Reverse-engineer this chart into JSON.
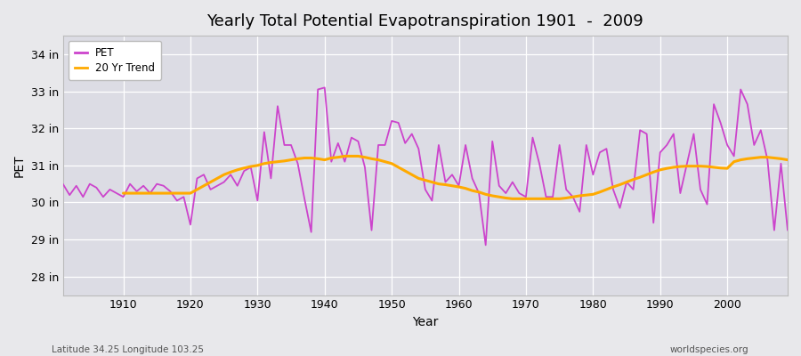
{
  "title": "Yearly Total Potential Evapotranspiration 1901  -  2009",
  "xlabel": "Year",
  "ylabel": "PET",
  "subtitle_left": "Latitude 34.25 Longitude 103.25",
  "subtitle_right": "worldspecies.org",
  "pet_color": "#cc44cc",
  "trend_color": "#ffaa00",
  "background_color": "#e8e8eb",
  "plot_bg_color": "#dcdce4",
  "ylim": [
    27.5,
    34.5
  ],
  "yticks": [
    28,
    29,
    30,
    31,
    32,
    33,
    34
  ],
  "ytick_labels": [
    "28 in",
    "29 in",
    "30 in",
    "31 in",
    "32 in",
    "33 in",
    "34 in"
  ],
  "years": [
    1901,
    1902,
    1903,
    1904,
    1905,
    1906,
    1907,
    1908,
    1909,
    1910,
    1911,
    1912,
    1913,
    1914,
    1915,
    1916,
    1917,
    1918,
    1919,
    1920,
    1921,
    1922,
    1923,
    1924,
    1925,
    1926,
    1927,
    1928,
    1929,
    1930,
    1931,
    1932,
    1933,
    1934,
    1935,
    1936,
    1937,
    1938,
    1939,
    1940,
    1941,
    1942,
    1943,
    1944,
    1945,
    1946,
    1947,
    1948,
    1949,
    1950,
    1951,
    1952,
    1953,
    1954,
    1955,
    1956,
    1957,
    1958,
    1959,
    1960,
    1961,
    1962,
    1963,
    1964,
    1965,
    1966,
    1967,
    1968,
    1969,
    1970,
    1971,
    1972,
    1973,
    1974,
    1975,
    1976,
    1977,
    1978,
    1979,
    1980,
    1981,
    1982,
    1983,
    1984,
    1985,
    1986,
    1987,
    1988,
    1989,
    1990,
    1991,
    1992,
    1993,
    1994,
    1995,
    1996,
    1997,
    1998,
    1999,
    2000,
    2001,
    2002,
    2003,
    2004,
    2005,
    2006,
    2007,
    2008,
    2009
  ],
  "pet_values": [
    30.5,
    30.2,
    30.45,
    30.15,
    30.5,
    30.4,
    30.15,
    30.35,
    30.25,
    30.15,
    30.5,
    30.3,
    30.45,
    30.25,
    30.5,
    30.45,
    30.3,
    30.05,
    30.15,
    29.4,
    30.65,
    30.75,
    30.35,
    30.45,
    30.55,
    30.75,
    30.45,
    30.85,
    30.95,
    30.05,
    31.9,
    30.65,
    32.6,
    31.55,
    31.55,
    31.05,
    30.1,
    29.2,
    33.05,
    33.1,
    31.1,
    31.6,
    31.1,
    31.75,
    31.65,
    30.95,
    29.25,
    31.55,
    31.55,
    32.2,
    32.15,
    31.6,
    31.85,
    31.45,
    30.35,
    30.05,
    31.55,
    30.55,
    30.75,
    30.45,
    31.55,
    30.65,
    30.25,
    28.85,
    31.65,
    30.45,
    30.25,
    30.55,
    30.25,
    30.15,
    31.75,
    31.05,
    30.15,
    30.15,
    31.55,
    30.35,
    30.15,
    29.75,
    31.55,
    30.75,
    31.35,
    31.45,
    30.35,
    29.85,
    30.55,
    30.35,
    31.95,
    31.85,
    29.45,
    31.35,
    31.55,
    31.85,
    30.25,
    31.05,
    31.85,
    30.35,
    29.95,
    32.65,
    32.15,
    31.55,
    31.25,
    33.05,
    32.65,
    31.55,
    31.95,
    31.15,
    29.25,
    31.05,
    29.25
  ],
  "trend_years": [
    1910,
    1911,
    1912,
    1913,
    1914,
    1915,
    1916,
    1917,
    1918,
    1919,
    1920,
    1921,
    1922,
    1923,
    1924,
    1925,
    1926,
    1927,
    1928,
    1929,
    1930,
    1931,
    1932,
    1933,
    1934,
    1935,
    1936,
    1937,
    1938,
    1939,
    1940,
    1941,
    1942,
    1943,
    1944,
    1945,
    1946,
    1947,
    1948,
    1949,
    1950,
    1951,
    1952,
    1953,
    1954,
    1955,
    1956,
    1957,
    1958,
    1959,
    1960,
    1961,
    1962,
    1963,
    1964,
    1965,
    1966,
    1967,
    1968,
    1969,
    1970,
    1971,
    1972,
    1973,
    1974,
    1975,
    1976,
    1977,
    1978,
    1979,
    1980,
    1981,
    1982,
    1983,
    1984,
    1985,
    1986,
    1987,
    1988,
    1989,
    1990,
    1991,
    1992,
    1993,
    1994,
    1995,
    1996,
    1997,
    1998,
    1999,
    2000,
    2001,
    2002,
    2003,
    2004,
    2005,
    2006,
    2007,
    2008,
    2009
  ],
  "trend_values": [
    30.25,
    30.25,
    30.25,
    30.25,
    30.25,
    30.25,
    30.25,
    30.25,
    30.25,
    30.25,
    30.25,
    30.35,
    30.45,
    30.55,
    30.65,
    30.75,
    30.82,
    30.88,
    30.93,
    30.97,
    31.0,
    31.05,
    31.08,
    31.1,
    31.12,
    31.15,
    31.18,
    31.2,
    31.2,
    31.18,
    31.15,
    31.2,
    31.22,
    31.25,
    31.25,
    31.25,
    31.22,
    31.18,
    31.15,
    31.1,
    31.05,
    30.95,
    30.85,
    30.75,
    30.65,
    30.6,
    30.55,
    30.5,
    30.48,
    30.45,
    30.42,
    30.38,
    30.32,
    30.28,
    30.22,
    30.18,
    30.15,
    30.12,
    30.1,
    30.1,
    30.1,
    30.1,
    30.1,
    30.1,
    30.1,
    30.1,
    30.12,
    30.15,
    30.18,
    30.2,
    30.22,
    30.28,
    30.35,
    30.42,
    30.48,
    30.55,
    30.62,
    30.68,
    30.75,
    30.82,
    30.88,
    30.92,
    30.95,
    30.97,
    30.98,
    30.98,
    30.98,
    30.97,
    30.95,
    30.93,
    30.92,
    31.1,
    31.15,
    31.18,
    31.2,
    31.22,
    31.22,
    31.2,
    31.18,
    31.15
  ]
}
